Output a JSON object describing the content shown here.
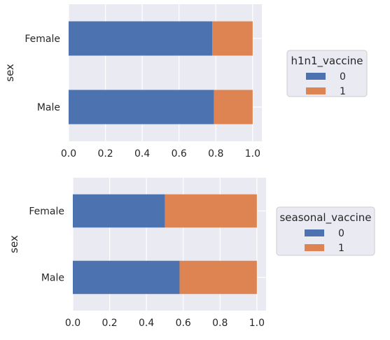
{
  "colors": {
    "plot_background": "#eaeaf2",
    "grid": "#ffffff",
    "series_0": "#4c72b0",
    "series_1": "#dd8452",
    "text": "#262626",
    "legend_border": "#cccccc"
  },
  "chart_data": [
    {
      "type": "bar",
      "orientation": "horizontal",
      "stacked": true,
      "categories": [
        "Female",
        "Male"
      ],
      "ylabel": "sex",
      "xlabel": "",
      "xlim": [
        0,
        1.05
      ],
      "xticks": [
        "0.0",
        "0.2",
        "0.4",
        "0.6",
        "0.8",
        "1.0"
      ],
      "grid": true,
      "legend": {
        "title": "h1n1_vaccine",
        "placement": "right",
        "entries": [
          "0",
          "1"
        ]
      },
      "series": [
        {
          "name": "0",
          "values": [
            0.78,
            0.79
          ]
        },
        {
          "name": "1",
          "values": [
            0.22,
            0.21
          ]
        }
      ]
    },
    {
      "type": "bar",
      "orientation": "horizontal",
      "stacked": true,
      "categories": [
        "Female",
        "Male"
      ],
      "ylabel": "sex",
      "xlabel": "",
      "xlim": [
        0,
        1.05
      ],
      "xticks": [
        "0.0",
        "0.2",
        "0.4",
        "0.6",
        "0.8",
        "1.0"
      ],
      "grid": true,
      "legend": {
        "title": "seasonal_vaccine",
        "placement": "right",
        "entries": [
          "0",
          "1"
        ]
      },
      "series": [
        {
          "name": "0",
          "values": [
            0.5,
            0.58
          ]
        },
        {
          "name": "1",
          "values": [
            0.5,
            0.42
          ]
        }
      ]
    }
  ]
}
